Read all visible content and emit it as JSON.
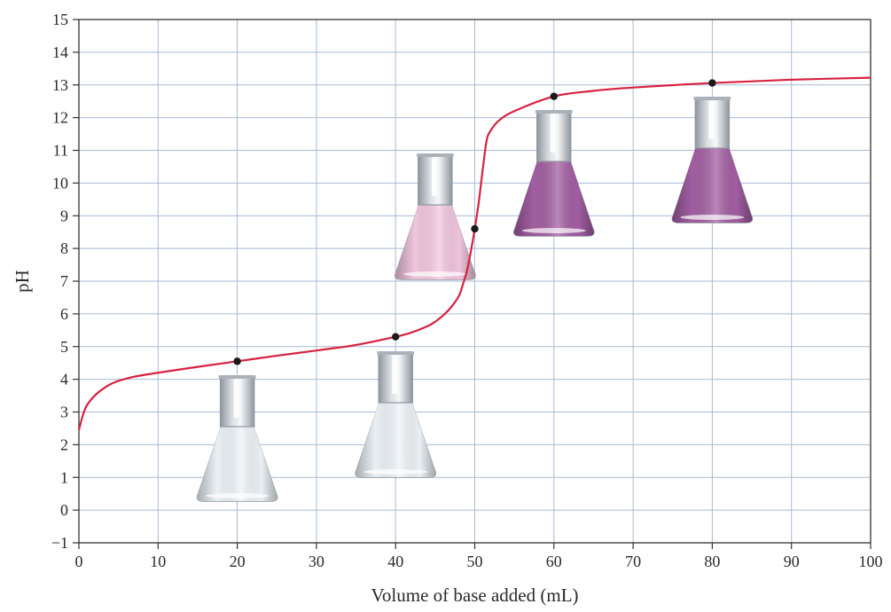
{
  "chart_data": {
    "type": "line",
    "title": "",
    "xlabel": "Volume of base added (mL)",
    "ylabel": "pH",
    "xlim": [
      0,
      100
    ],
    "ylim": [
      -1,
      15
    ],
    "grid": true,
    "x_ticks": [
      "0",
      "10",
      "20",
      "30",
      "40",
      "50",
      "60",
      "70",
      "80",
      "90",
      "100"
    ],
    "y_ticks": [
      "15",
      "14",
      "13",
      "12",
      "11",
      "10",
      "9",
      "8",
      "7",
      "6",
      "5",
      "4",
      "3",
      "2",
      "1",
      "0",
      "−1"
    ],
    "series": [
      {
        "color": "#d8223f",
        "x": [
          0,
          0.5,
          1,
          2,
          3,
          4,
          5,
          7,
          10,
          15,
          20,
          25,
          30,
          35,
          40,
          42,
          44,
          45,
          46,
          47,
          48,
          48.5,
          49,
          49.5,
          50,
          50.5,
          51,
          51.5,
          52,
          53,
          55,
          60,
          65,
          70,
          80,
          90,
          100
        ],
        "y": [
          2.45,
          2.9,
          3.2,
          3.5,
          3.7,
          3.85,
          3.95,
          4.08,
          4.2,
          4.38,
          4.55,
          4.72,
          4.88,
          5.05,
          5.3,
          5.43,
          5.62,
          5.76,
          5.95,
          6.2,
          6.55,
          6.9,
          7.3,
          7.9,
          8.6,
          9.4,
          10.4,
          11.3,
          11.6,
          11.9,
          12.2,
          12.65,
          12.82,
          12.92,
          13.06,
          13.16,
          13.22
        ]
      }
    ],
    "highlight_points": [
      {
        "x": 20,
        "y": 4.55
      },
      {
        "x": 40,
        "y": 5.3
      },
      {
        "x": 50,
        "y": 8.6
      },
      {
        "x": 60,
        "y": 12.65
      },
      {
        "x": 80,
        "y": 13.06
      }
    ],
    "flasks": [
      {
        "x": 20,
        "fill_color": "#eef4f9"
      },
      {
        "x": 40,
        "fill_color": "#eef4f9"
      },
      {
        "x": 45,
        "fill_color": "#f4c6df"
      },
      {
        "x": 60,
        "fill_color": "#a0579f"
      },
      {
        "x": 80,
        "fill_color": "#a0579f"
      }
    ],
    "colors": {
      "grid": "#a9b9d6",
      "axis": "#333333",
      "point": "#1a1a1a",
      "glass": "#bfc6cc"
    }
  }
}
